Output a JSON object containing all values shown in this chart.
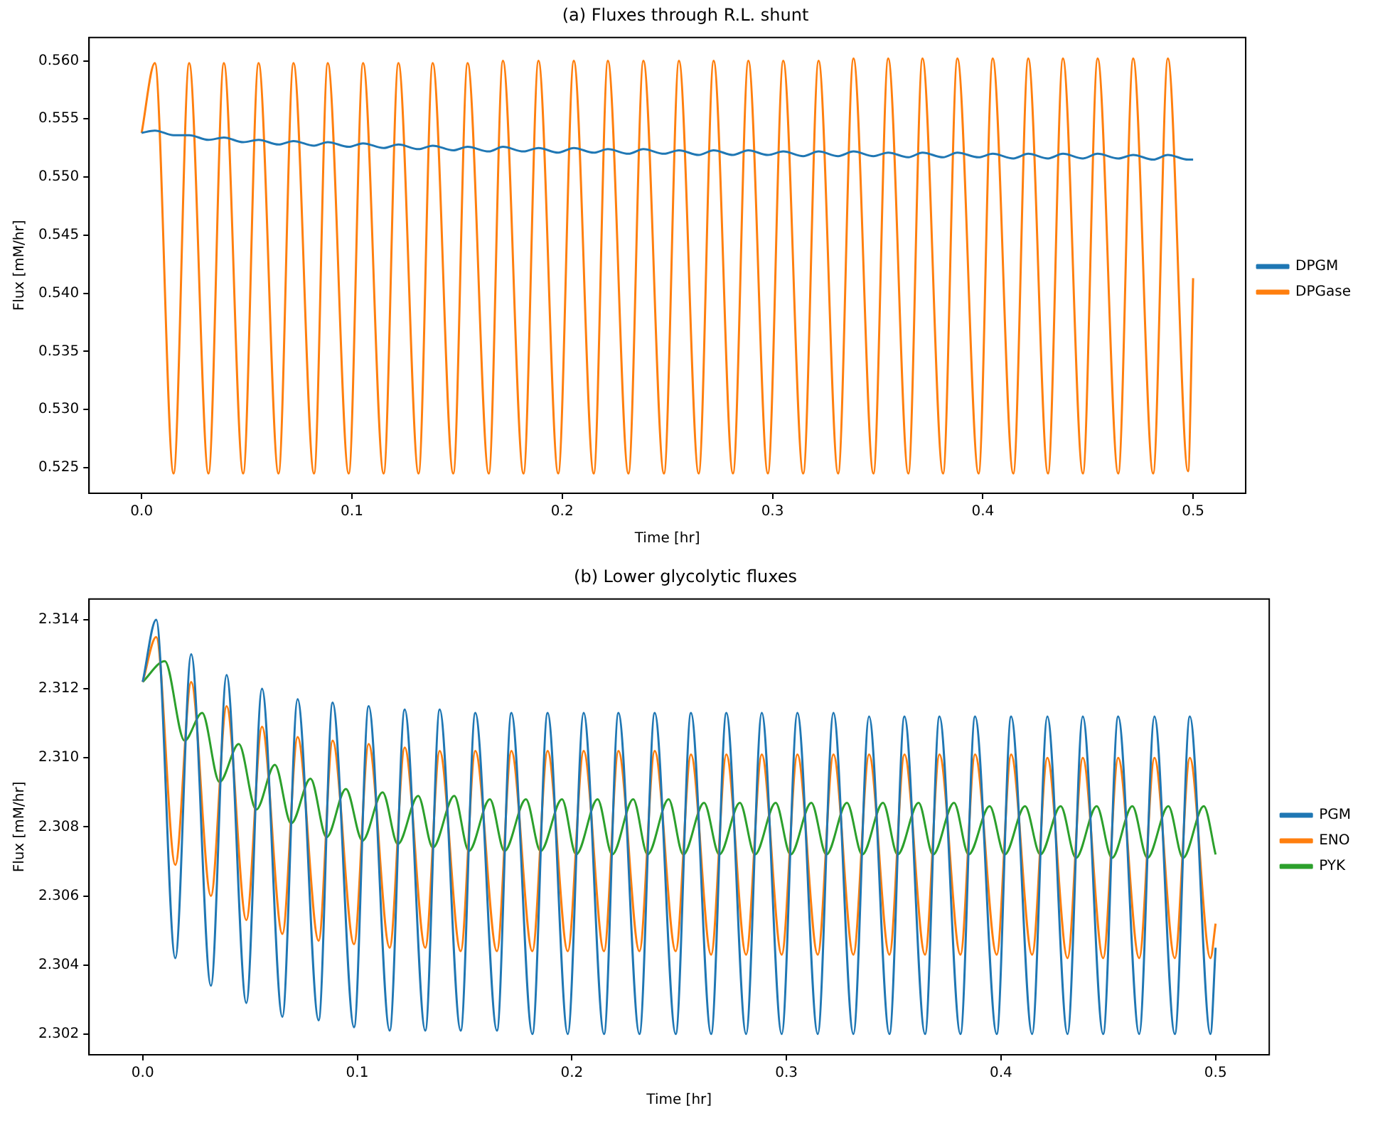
{
  "chart_data": [
    {
      "type": "line",
      "title": "(a) Fluxes through R.L. shunt",
      "xlabel": "Time [hr]",
      "ylabel": "Flux [mM/hr]",
      "legend": "right",
      "xlim": [
        -0.025,
        0.525
      ],
      "ylim": [
        0.5228,
        0.562
      ],
      "xticks": [
        {
          "value": 0,
          "label": "0.0"
        },
        {
          "value": 0.1,
          "label": "0.1"
        },
        {
          "value": 0.2,
          "label": "0.2"
        },
        {
          "value": 0.3,
          "label": "0.3"
        },
        {
          "value": 0.4,
          "label": "0.4"
        },
        {
          "value": 0.5,
          "label": "0.5"
        }
      ],
      "yticks": [
        {
          "value": 0.525,
          "label": "0.525"
        },
        {
          "value": 0.53,
          "label": "0.530"
        },
        {
          "value": 0.535,
          "label": "0.535"
        },
        {
          "value": 0.54,
          "label": "0.540"
        },
        {
          "value": 0.545,
          "label": "0.545"
        },
        {
          "value": 0.55,
          "label": "0.550"
        },
        {
          "value": 0.555,
          "label": "0.555"
        },
        {
          "value": 0.56,
          "label": "0.560"
        }
      ],
      "x": [
        0,
        0.0063,
        0.0152,
        0.0226,
        0.0318,
        0.0391,
        0.0483,
        0.0556,
        0.0651,
        0.0722,
        0.082,
        0.0885,
        0.0985,
        0.1053,
        0.1151,
        0.1221,
        0.1317,
        0.1384,
        0.1482,
        0.155,
        0.1651,
        0.1718,
        0.1816,
        0.1887,
        0.1981,
        0.2055,
        0.215,
        0.2217,
        0.2315,
        0.2386,
        0.2484,
        0.2555,
        0.2649,
        0.272,
        0.2812,
        0.2885,
        0.2978,
        0.3051,
        0.3146,
        0.3219,
        0.3312,
        0.3385,
        0.348,
        0.355,
        0.3646,
        0.3713,
        0.3811,
        0.3879,
        0.398,
        0.4047,
        0.4145,
        0.4216,
        0.431,
        0.4381,
        0.4476,
        0.4546,
        0.4644,
        0.4715,
        0.481,
        0.488,
        0.4976,
        0.5
      ],
      "series": [
        {
          "name": "DPGM",
          "color": "#1f77b4",
          "values": [
            0.5538,
            0.554,
            0.5536,
            0.5536,
            0.5532,
            0.5534,
            0.553,
            0.5532,
            0.5528,
            0.5531,
            0.5527,
            0.553,
            0.5526,
            0.5529,
            0.5525,
            0.5528,
            0.5524,
            0.5527,
            0.5523,
            0.5526,
            0.5522,
            0.5526,
            0.5522,
            0.5525,
            0.5521,
            0.5525,
            0.5521,
            0.5524,
            0.552,
            0.5524,
            0.552,
            0.5523,
            0.5519,
            0.5523,
            0.5519,
            0.5523,
            0.5519,
            0.5522,
            0.5518,
            0.5522,
            0.5518,
            0.5522,
            0.5518,
            0.5521,
            0.5517,
            0.5521,
            0.5517,
            0.5521,
            0.5517,
            0.552,
            0.5516,
            0.552,
            0.5516,
            0.552,
            0.5516,
            0.552,
            0.5516,
            0.5519,
            0.5515,
            0.5519,
            0.5515,
            0.5515
          ]
        },
        {
          "name": "DPGase",
          "color": "#ff7f0e",
          "values": [
            0.5538,
            0.5598,
            0.5245,
            0.5598,
            0.5245,
            0.5598,
            0.5245,
            0.5598,
            0.5245,
            0.5598,
            0.5245,
            0.5598,
            0.5245,
            0.5598,
            0.5245,
            0.5598,
            0.5245,
            0.5598,
            0.5245,
            0.5598,
            0.5245,
            0.56,
            0.5245,
            0.56,
            0.5245,
            0.56,
            0.5245,
            0.56,
            0.5245,
            0.56,
            0.5245,
            0.56,
            0.5245,
            0.56,
            0.5245,
            0.56,
            0.5245,
            0.56,
            0.5245,
            0.56,
            0.5245,
            0.5602,
            0.5245,
            0.5602,
            0.5245,
            0.5602,
            0.5245,
            0.5602,
            0.5245,
            0.5602,
            0.5245,
            0.5602,
            0.5245,
            0.5602,
            0.5245,
            0.5602,
            0.5245,
            0.5602,
            0.5245,
            0.5602,
            0.5247,
            0.5413
          ]
        }
      ]
    },
    {
      "type": "line",
      "title": "(b) Lower glycolytic fluxes",
      "xlabel": "Time [hr]",
      "ylabel": "Flux [mM/hr]",
      "legend": "right",
      "xlim": [
        -0.025,
        0.525
      ],
      "ylim": [
        2.3014,
        2.3146
      ],
      "xticks": [
        {
          "value": 0,
          "label": "0.0"
        },
        {
          "value": 0.1,
          "label": "0.1"
        },
        {
          "value": 0.2,
          "label": "0.2"
        },
        {
          "value": 0.3,
          "label": "0.3"
        },
        {
          "value": 0.4,
          "label": "0.4"
        },
        {
          "value": 0.5,
          "label": "0.5"
        }
      ],
      "yticks": [
        2.302,
        2.304,
        2.306,
        2.308,
        {
          "value": 2.31,
          "label": "2.310"
        },
        2.312,
        2.314
      ],
      "x": [
        0,
        0.0063,
        0.0152,
        0.0226,
        0.0318,
        0.0391,
        0.0483,
        0.0556,
        0.0651,
        0.0722,
        0.082,
        0.0885,
        0.0985,
        0.1053,
        0.1151,
        0.1221,
        0.1317,
        0.1384,
        0.1482,
        0.155,
        0.1651,
        0.1718,
        0.1816,
        0.1887,
        0.1981,
        0.2055,
        0.215,
        0.2217,
        0.2315,
        0.2386,
        0.2484,
        0.2555,
        0.2649,
        0.272,
        0.2812,
        0.2885,
        0.2978,
        0.3051,
        0.3146,
        0.3219,
        0.3312,
        0.3385,
        0.348,
        0.355,
        0.3646,
        0.3713,
        0.3811,
        0.3879,
        0.398,
        0.4047,
        0.4145,
        0.4216,
        0.431,
        0.4381,
        0.4476,
        0.4546,
        0.4644,
        0.4715,
        0.481,
        0.488,
        0.4976,
        0.5
      ],
      "series": [
        {
          "name": "PGM",
          "color": "#1f77b4",
          "values": [
            2.3122,
            2.314,
            2.3042,
            2.313,
            2.3034,
            2.3124,
            2.3029,
            2.312,
            2.3025,
            2.3117,
            2.3024,
            2.3116,
            2.3022,
            2.3115,
            2.3021,
            2.3114,
            2.3021,
            2.3114,
            2.3021,
            2.3113,
            2.3021,
            2.3113,
            2.302,
            2.3113,
            2.302,
            2.3113,
            2.302,
            2.3113,
            2.302,
            2.3113,
            2.302,
            2.3113,
            2.302,
            2.3113,
            2.302,
            2.3113,
            2.302,
            2.3113,
            2.302,
            2.3113,
            2.302,
            2.3112,
            2.302,
            2.3112,
            2.302,
            2.3112,
            2.302,
            2.3112,
            2.302,
            2.3112,
            2.302,
            2.3112,
            2.302,
            2.3112,
            2.302,
            2.3112,
            2.302,
            2.3112,
            2.302,
            2.3112,
            2.302,
            2.3045
          ]
        },
        {
          "name": "ENO",
          "color": "#ff7f0e",
          "values": [
            2.3122,
            2.3135,
            2.3069,
            2.3122,
            2.306,
            2.3115,
            2.3053,
            2.3109,
            2.3049,
            2.3106,
            2.3047,
            2.3105,
            2.3046,
            2.3104,
            2.3045,
            2.3103,
            2.3045,
            2.3102,
            2.3044,
            2.3102,
            2.3044,
            2.3102,
            2.3044,
            2.3102,
            2.3044,
            2.3102,
            2.3044,
            2.3102,
            2.3044,
            2.3102,
            2.3044,
            2.3101,
            2.3043,
            2.3101,
            2.3043,
            2.3101,
            2.3043,
            2.3101,
            2.3043,
            2.3101,
            2.3043,
            2.3101,
            2.3043,
            2.3101,
            2.3043,
            2.3101,
            2.3043,
            2.3101,
            2.3043,
            2.3101,
            2.3043,
            2.31,
            2.3042,
            2.31,
            2.3042,
            2.31,
            2.3042,
            2.31,
            2.3042,
            2.31,
            2.3042,
            2.3052
          ]
        },
        {
          "name": "PYK",
          "color": "#2ca02c",
          "x": [
            0,
            0.0103,
            0.0195,
            0.0277,
            0.0358,
            0.0448,
            0.0529,
            0.0616,
            0.0692,
            0.0782,
            0.0857,
            0.0947,
            0.1024,
            0.1118,
            0.1189,
            0.1284,
            0.1352,
            0.1452,
            0.152,
            0.1618,
            0.1686,
            0.1786,
            0.1854,
            0.1954,
            0.202,
            0.212,
            0.2188,
            0.2286,
            0.2353,
            0.2451,
            0.2519,
            0.2616,
            0.2687,
            0.2783,
            0.2853,
            0.295,
            0.3019,
            0.3116,
            0.3186,
            0.3282,
            0.3353,
            0.345,
            0.3518,
            0.3616,
            0.3683,
            0.3781,
            0.3849,
            0.3947,
            0.4017,
            0.4112,
            0.4183,
            0.4278,
            0.4349,
            0.4446,
            0.4517,
            0.4612,
            0.4682,
            0.478,
            0.4848,
            0.4945,
            0.5
          ],
          "values": [
            2.3122,
            2.3128,
            2.3105,
            2.3113,
            2.3093,
            2.3104,
            2.3085,
            2.3098,
            2.3081,
            2.3094,
            2.3077,
            2.3091,
            2.3076,
            2.309,
            2.3075,
            2.3089,
            2.3074,
            2.3089,
            2.3073,
            2.3088,
            2.3073,
            2.3088,
            2.3073,
            2.3088,
            2.3072,
            2.3088,
            2.3072,
            2.3088,
            2.3072,
            2.3088,
            2.3072,
            2.3087,
            2.3072,
            2.3087,
            2.3072,
            2.3087,
            2.3072,
            2.3087,
            2.3072,
            2.3087,
            2.3072,
            2.3087,
            2.3072,
            2.3087,
            2.3072,
            2.3087,
            2.3072,
            2.3086,
            2.3072,
            2.3086,
            2.3072,
            2.3086,
            2.3071,
            2.3086,
            2.3071,
            2.3086,
            2.3071,
            2.3086,
            2.3071,
            2.3086,
            2.3072
          ]
        }
      ]
    }
  ]
}
